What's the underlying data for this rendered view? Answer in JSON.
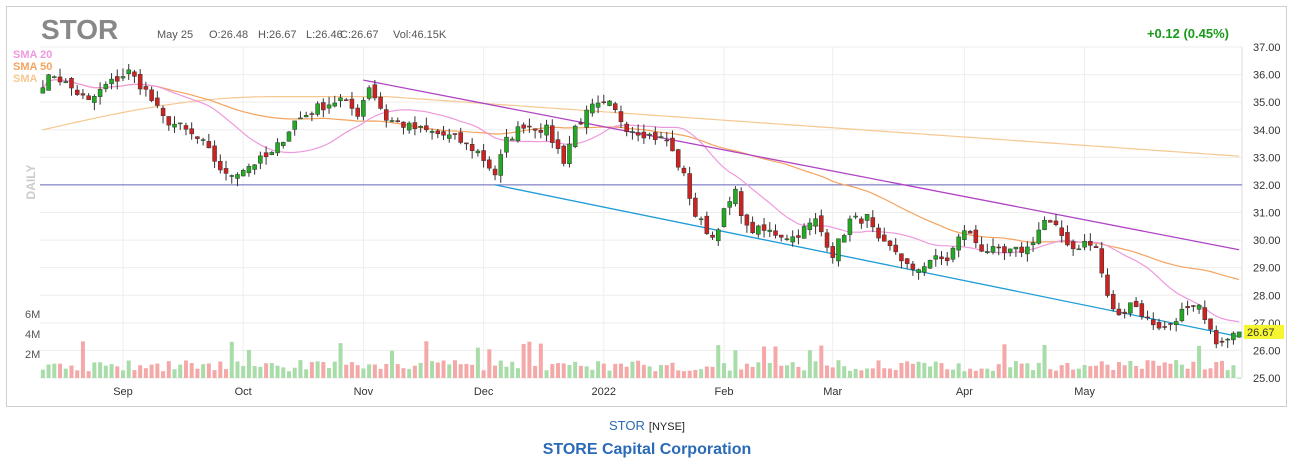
{
  "symbol": "STOR",
  "exchange": "[NYSE]",
  "company": "STORE Capital Corporation",
  "ohlc": {
    "date": "May 25",
    "o": "O:26.48",
    "h": "H:26.67",
    "l": "L:26.46",
    "c": "C:26.67",
    "vol": "Vol:46.15K"
  },
  "change": "+0.12 (0.45%)",
  "last_price": "26.67",
  "period_label": "DAILY",
  "legend": [
    {
      "label": "SMA 20",
      "color": "#ee99dd"
    },
    {
      "label": "SMA 50",
      "color": "#f4a460"
    },
    {
      "label": "SMA",
      "color": "#f5c890"
    }
  ],
  "colors": {
    "up": "#22aa22",
    "down": "#cc2222",
    "vol_up": "#a8dca8",
    "vol_down": "#f5a8a8",
    "channel_upper": "#b044c4",
    "channel_lower": "#1e9cd7",
    "support": "#6666bb",
    "change_text": "#1a9a1a",
    "price_tag": "#f5f530"
  },
  "chart_data": {
    "type": "candlestick",
    "y_ticks": [
      "37.00",
      "36.00",
      "35.00",
      "34.00",
      "33.00",
      "32.00",
      "31.00",
      "30.00",
      "29.00",
      "28.00",
      "27.00",
      "26.00",
      "25.00"
    ],
    "ylim": [
      25,
      37
    ],
    "volume_ticks": [
      "6M",
      "4M",
      "2M"
    ],
    "volume_lim": [
      0,
      8000000
    ],
    "x_labels": [
      {
        "label": "Sep",
        "index": 14
      },
      {
        "label": "Oct",
        "index": 35
      },
      {
        "label": "Nov",
        "index": 56
      },
      {
        "label": "Dec",
        "index": 77
      },
      {
        "label": "2022",
        "index": 98
      },
      {
        "label": "Feb",
        "index": 119
      },
      {
        "label": "Mar",
        "index": 138
      },
      {
        "label": "Apr",
        "index": 161
      },
      {
        "label": "May",
        "index": 182
      }
    ],
    "waypoints": [
      [
        0,
        35.7
      ],
      [
        2,
        36.0
      ],
      [
        5,
        35.5
      ],
      [
        8,
        35.0
      ],
      [
        11,
        35.6
      ],
      [
        15,
        36.1
      ],
      [
        18,
        35.4
      ],
      [
        21,
        34.4
      ],
      [
        24,
        34.1
      ],
      [
        28,
        33.5
      ],
      [
        32,
        32.3
      ],
      [
        36,
        32.7
      ],
      [
        40,
        33.1
      ],
      [
        44,
        34.3
      ],
      [
        48,
        34.8
      ],
      [
        52,
        35.1
      ],
      [
        55,
        34.6
      ],
      [
        57,
        35.6
      ],
      [
        60,
        34.4
      ],
      [
        64,
        34.1
      ],
      [
        68,
        33.9
      ],
      [
        72,
        33.7
      ],
      [
        76,
        33.2
      ],
      [
        79,
        32.4
      ],
      [
        81,
        33.6
      ],
      [
        84,
        34.2
      ],
      [
        88,
        34.0
      ],
      [
        91,
        32.9
      ],
      [
        93,
        34.1
      ],
      [
        96,
        34.8
      ],
      [
        99,
        34.9
      ],
      [
        102,
        34.1
      ],
      [
        106,
        33.8
      ],
      [
        109,
        33.6
      ],
      [
        112,
        32.3
      ],
      [
        114,
        30.9
      ],
      [
        117,
        30.1
      ],
      [
        119,
        31.0
      ],
      [
        121,
        31.7
      ],
      [
        123,
        30.4
      ],
      [
        127,
        30.3
      ],
      [
        131,
        30.1
      ],
      [
        135,
        30.7
      ],
      [
        138,
        29.5
      ],
      [
        141,
        30.7
      ],
      [
        144,
        30.8
      ],
      [
        146,
        29.9
      ],
      [
        149,
        29.6
      ],
      [
        152,
        28.8
      ],
      [
        155,
        29.3
      ],
      [
        158,
        29.3
      ],
      [
        161,
        30.4
      ],
      [
        164,
        29.7
      ],
      [
        168,
        29.5
      ],
      [
        172,
        29.7
      ],
      [
        175,
        30.7
      ],
      [
        177,
        30.4
      ],
      [
        180,
        29.7
      ],
      [
        182,
        29.9
      ],
      [
        184,
        29.7
      ],
      [
        186,
        27.9
      ],
      [
        188,
        27.2
      ],
      [
        190,
        27.8
      ],
      [
        193,
        27.1
      ],
      [
        196,
        26.8
      ],
      [
        199,
        27.4
      ],
      [
        202,
        27.5
      ],
      [
        204,
        26.6
      ],
      [
        206,
        26.2
      ],
      [
        208,
        26.55
      ],
      [
        209,
        26.67
      ]
    ],
    "channel_upper": [
      {
        "i": 56,
        "p": 35.8
      },
      {
        "i": 209,
        "p": 29.65
      }
    ],
    "channel_lower": [
      {
        "i": 79,
        "p": 32.0
      },
      {
        "i": 209,
        "p": 26.5
      }
    ],
    "support_level": 32.0
  }
}
